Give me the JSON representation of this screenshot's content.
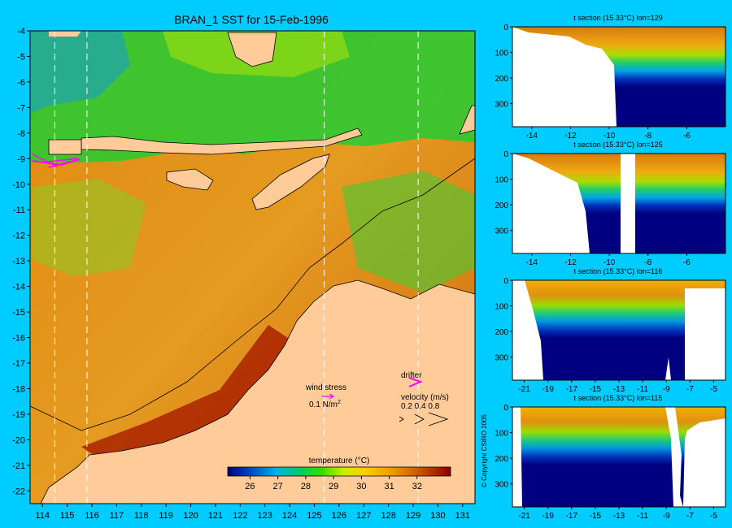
{
  "main_map": {
    "title": "BRAN_1 SST for 15-Feb-1996",
    "x_ticks": [
      "114",
      "115",
      "116",
      "117",
      "118",
      "119",
      "120",
      "121",
      "122",
      "123",
      "124",
      "125",
      "126",
      "127",
      "128",
      "129",
      "130",
      "131"
    ],
    "y_ticks": [
      "-4",
      "-5",
      "-6",
      "-7",
      "-8",
      "-9",
      "-10",
      "-11",
      "-12",
      "-13",
      "-14",
      "-15",
      "-16",
      "-17",
      "-18",
      "-19",
      "-20",
      "-21",
      "-22"
    ],
    "x_range": [
      113.5,
      131.5
    ],
    "y_range": [
      -22.5,
      -4
    ],
    "section_longitudes": [
      114.5,
      115.8,
      125.4,
      129.2
    ],
    "legend": {
      "wind_stress_label": "wind stress",
      "wind_stress_value": "0.1 N/m",
      "wind_stress_sup": "2",
      "drifter_label": "drifter",
      "velocity_label": "velocity (m/s)",
      "velocity_values": "0.2 0.4 0.8"
    },
    "colorbar": {
      "title": "temperature (°C)",
      "ticks": [
        "26",
        "27",
        "28",
        "29",
        "30",
        "31",
        "32"
      ],
      "range": [
        25.2,
        33.2
      ]
    }
  },
  "copyright": "© Copyright CSIRO 2005",
  "chart_data": [
    {
      "type": "heatmap",
      "title": "BRAN_1 SST for 15-Feb-1996",
      "xlabel": "",
      "ylabel": "",
      "xlim": [
        113.5,
        131.5
      ],
      "ylim": [
        -22.5,
        -4
      ],
      "colorbar_label": "temperature (°C)",
      "colorbar_range": [
        25.2,
        33.2
      ]
    },
    {
      "type": "heatmap",
      "title": "t section (15.33°C) lon=129",
      "xlim": [
        -15,
        -4
      ],
      "ylim": [
        390,
        0
      ],
      "x_ticks": [
        "-14",
        "-12",
        "-10",
        "-8",
        "-6"
      ],
      "y_ticks": [
        "0",
        "100",
        "200",
        "300"
      ]
    },
    {
      "type": "heatmap",
      "title": "t section (15.33°C) lon=125",
      "xlim": [
        -15,
        -4
      ],
      "ylim": [
        390,
        0
      ],
      "x_ticks": [
        "-14",
        "-12",
        "-10",
        "-8",
        "-6"
      ],
      "y_ticks": [
        "0",
        "100",
        "200",
        "300"
      ]
    },
    {
      "type": "heatmap",
      "title": "t section (15.33°C) lon=116",
      "xlim": [
        -22,
        -4
      ],
      "ylim": [
        390,
        0
      ],
      "x_ticks": [
        "-21",
        "-19",
        "-17",
        "-15",
        "-13",
        "-11",
        "-9",
        "-7",
        "-5"
      ],
      "y_ticks": [
        "0",
        "100",
        "200",
        "300"
      ]
    },
    {
      "type": "heatmap",
      "title": "t section (15.33°C) lon=115",
      "xlim": [
        -22,
        -4
      ],
      "ylim": [
        390,
        0
      ],
      "x_ticks": [
        "-21",
        "-19",
        "-17",
        "-15",
        "-13",
        "-11",
        "-9",
        "-7",
        "-5"
      ],
      "y_ticks": [
        "0",
        "100",
        "200",
        "300"
      ]
    }
  ]
}
